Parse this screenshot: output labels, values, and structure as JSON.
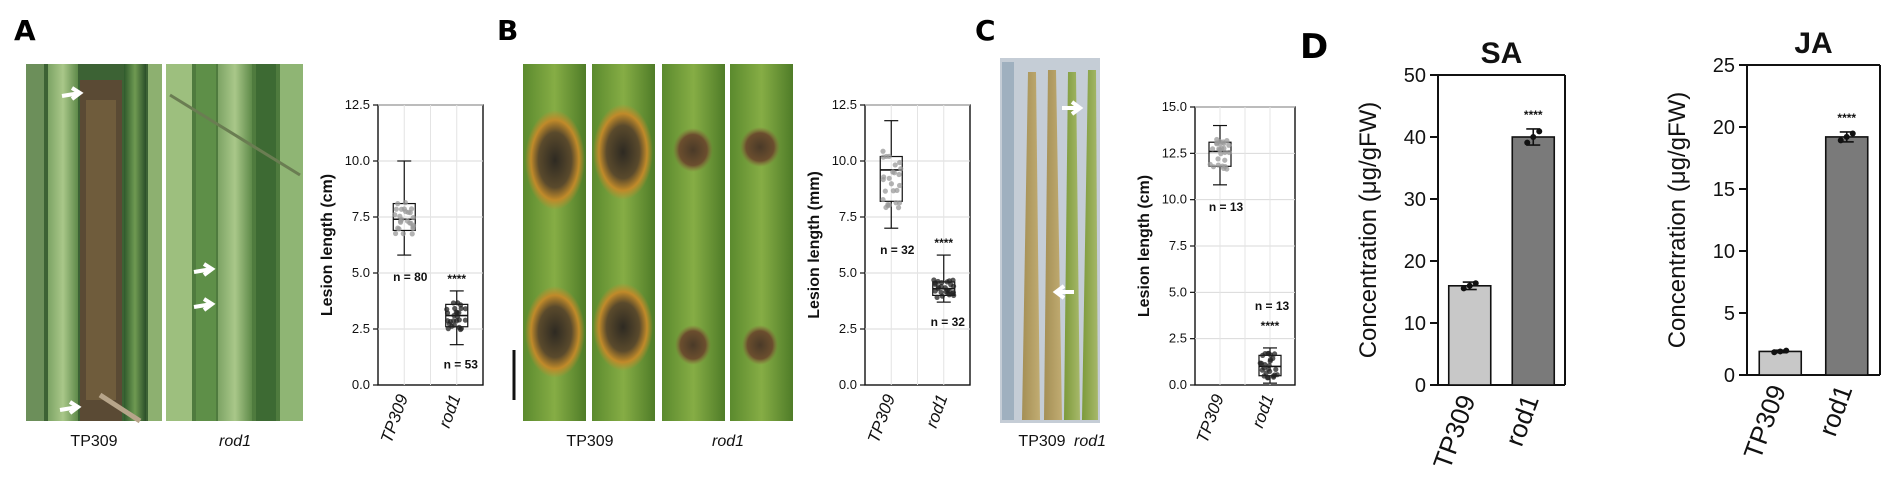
{
  "panels": {
    "A": {
      "letter": "A",
      "photo_labels": [
        "TP309",
        "rod1"
      ]
    },
    "B": {
      "letter": "B",
      "photo_labels": [
        "TP309",
        "rod1"
      ]
    },
    "C": {
      "letter": "C",
      "photo_labels": [
        "TP309",
        "rod1"
      ]
    },
    "D": {
      "letter": "D"
    }
  },
  "chart_data": [
    {
      "id": "A",
      "type": "box",
      "ylabel": "Lesion length (cm)",
      "ylim": [
        0,
        12.5
      ],
      "yticks": [
        "0.0",
        "2.5",
        "5.0",
        "7.5",
        "10.0",
        "12.5"
      ],
      "categories": [
        "TP309",
        "rod1"
      ],
      "series": [
        {
          "category": "TP309",
          "min": 5.8,
          "q1": 6.9,
          "median": 7.4,
          "q3": 8.1,
          "max": 10.0,
          "n_label": "n = 80",
          "sig": ""
        },
        {
          "category": "rod1",
          "min": 1.8,
          "q1": 2.6,
          "median": 3.1,
          "q3": 3.6,
          "max": 4.2,
          "n_label": "n = 53",
          "sig": "****"
        }
      ],
      "grid": true
    },
    {
      "id": "B",
      "type": "box",
      "ylabel": "Lesion length (mm)",
      "ylim": [
        0,
        12.5
      ],
      "yticks": [
        "0.0",
        "2.5",
        "5.0",
        "7.5",
        "10.0",
        "12.5"
      ],
      "categories": [
        "TP309",
        "rod1"
      ],
      "series": [
        {
          "category": "TP309",
          "min": 7.0,
          "q1": 8.2,
          "median": 9.6,
          "q3": 10.2,
          "max": 11.8,
          "n_label": "n = 32",
          "sig": ""
        },
        {
          "category": "rod1",
          "min": 3.7,
          "q1": 4.0,
          "median": 4.3,
          "q3": 4.6,
          "max": 5.8,
          "n_label": "n = 32",
          "sig": "****"
        }
      ],
      "grid": true
    },
    {
      "id": "C",
      "type": "box",
      "ylabel": "Lesion length (cm)",
      "ylim": [
        0,
        15.0
      ],
      "yticks": [
        "0.0",
        "2.5",
        "5.0",
        "7.5",
        "10.0",
        "12.5",
        "15.0"
      ],
      "categories": [
        "TP309",
        "rod1"
      ],
      "series": [
        {
          "category": "TP309",
          "min": 10.8,
          "q1": 11.8,
          "median": 12.6,
          "q3": 13.1,
          "max": 14.0,
          "n_label": "n = 13",
          "sig": ""
        },
        {
          "category": "rod1",
          "min": 0.1,
          "q1": 0.5,
          "median": 1.0,
          "q3": 1.6,
          "max": 2.0,
          "n_label": "n = 13",
          "sig": "****"
        }
      ],
      "grid": true
    },
    {
      "id": "D-SA",
      "type": "bar",
      "title": "SA",
      "ylabel": "Concentration (μg/gFW)",
      "ylim": [
        0,
        50
      ],
      "yticks": [
        "0",
        "10",
        "20",
        "30",
        "40",
        "50"
      ],
      "categories": [
        "TP309",
        "rod1"
      ],
      "values": [
        16.0,
        40.0
      ],
      "errors": [
        0.6,
        1.3
      ],
      "sig": [
        "",
        "****"
      ],
      "colors": [
        "#c8c8c8",
        "#7a7a7a"
      ]
    },
    {
      "id": "D-JA",
      "type": "bar",
      "title": "JA",
      "ylabel": "Concentration (μg/gFW)",
      "ylim": [
        0,
        25
      ],
      "yticks": [
        "0",
        "5",
        "10",
        "15",
        "20",
        "25"
      ],
      "categories": [
        "TP309",
        "rod1"
      ],
      "values": [
        1.9,
        19.2
      ],
      "errors": [
        0.1,
        0.4
      ],
      "sig": [
        "",
        "****"
      ],
      "colors": [
        "#c8c8c8",
        "#7a7a7a"
      ]
    }
  ]
}
